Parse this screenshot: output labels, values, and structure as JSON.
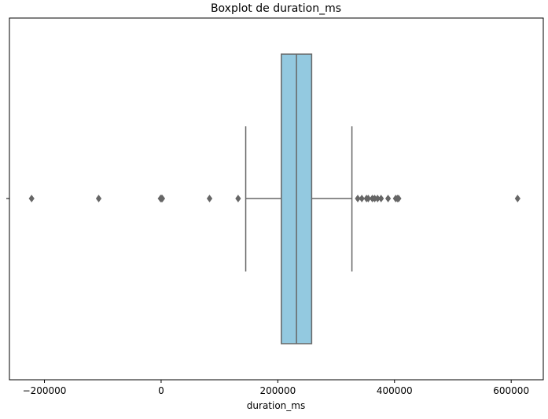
{
  "chart_data": {
    "type": "boxplot",
    "title": "Boxplot de duration_ms",
    "xlabel": "duration_ms",
    "ylabel": "",
    "xlim": [
      -260000,
      655000
    ],
    "xticks": [
      -200000,
      0,
      200000,
      400000,
      600000
    ],
    "xtick_labels": [
      "−200000",
      "0",
      "200000",
      "400000",
      "600000"
    ],
    "grid": false,
    "box_color": "#93c9e0",
    "line_color": "#666666",
    "stats": {
      "whisker_low": 145000,
      "q1": 206000,
      "median": 232000,
      "q3": 258000,
      "whisker_high": 327000
    },
    "outliers": [
      -222000,
      -107000,
      -1000,
      0,
      1000,
      2000,
      83000,
      132000,
      337000,
      344000,
      352000,
      355000,
      362000,
      366000,
      371000,
      377000,
      389000,
      402000,
      405000,
      407000,
      611000
    ]
  }
}
